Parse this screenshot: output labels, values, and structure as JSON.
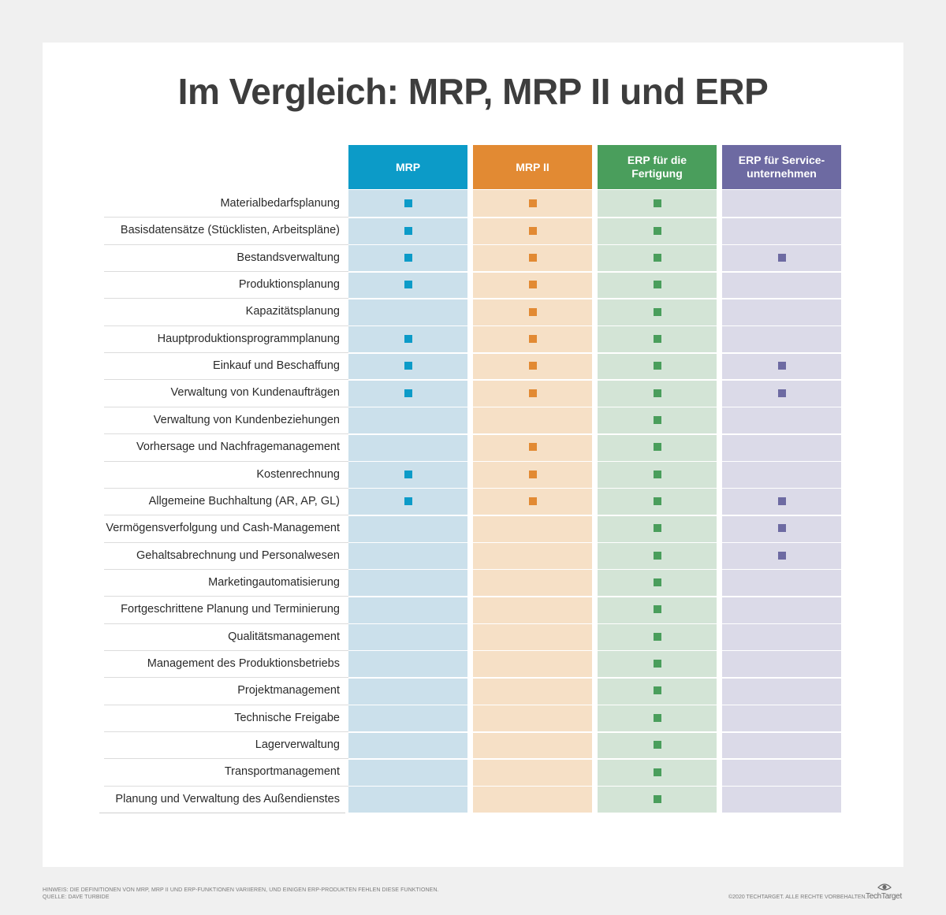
{
  "title": "Im Vergleich: MRP, MRP II und ERP",
  "columns": [
    {
      "label": "MRP",
      "header_color": "#0c9bc8",
      "body_color": "#cbe0eb",
      "mark_color": "#0c9bc8"
    },
    {
      "label": "MRP II",
      "header_color": "#e28a33",
      "body_color": "#f6e0c6",
      "mark_color": "#e28a33"
    },
    {
      "label": "ERP für die Fertigung",
      "header_color": "#4a9e5c",
      "body_color": "#d3e4d6",
      "mark_color": "#4a9e5c"
    },
    {
      "label": "ERP für Service-unternehmen",
      "header_color": "#6d6aa2",
      "body_color": "#dbdae8",
      "mark_color": "#6d6aa2"
    }
  ],
  "rows": [
    {
      "label": "Materialbedarfsplanung",
      "marks": [
        true,
        true,
        true,
        false
      ]
    },
    {
      "label": "Basisdatensätze (Stücklisten, Arbeitspläne)",
      "marks": [
        true,
        true,
        true,
        false
      ]
    },
    {
      "label": "Bestandsverwaltung",
      "marks": [
        true,
        true,
        true,
        true
      ]
    },
    {
      "label": "Produktionsplanung",
      "marks": [
        true,
        true,
        true,
        false
      ]
    },
    {
      "label": "Kapazitätsplanung",
      "marks": [
        false,
        true,
        true,
        false
      ]
    },
    {
      "label": "Hauptproduktionsprogrammplanung",
      "marks": [
        true,
        true,
        true,
        false
      ]
    },
    {
      "label": "Einkauf und Beschaffung",
      "marks": [
        true,
        true,
        true,
        true
      ]
    },
    {
      "label": "Verwaltung von Kundenaufträgen",
      "marks": [
        true,
        true,
        true,
        true
      ]
    },
    {
      "label": "Verwaltung von Kundenbeziehungen",
      "marks": [
        false,
        false,
        true,
        false
      ]
    },
    {
      "label": "Vorhersage und Nachfragemanagement",
      "marks": [
        false,
        true,
        true,
        false
      ]
    },
    {
      "label": "Kostenrechnung",
      "marks": [
        true,
        true,
        true,
        false
      ]
    },
    {
      "label": "Allgemeine Buchhaltung (AR, AP, GL)",
      "marks": [
        true,
        true,
        true,
        true
      ]
    },
    {
      "label": "Vermögensverfolgung und Cash-Management",
      "marks": [
        false,
        false,
        true,
        true
      ]
    },
    {
      "label": "Gehaltsabrechnung und Personalwesen",
      "marks": [
        false,
        false,
        true,
        true
      ]
    },
    {
      "label": "Marketingautomatisierung",
      "marks": [
        false,
        false,
        true,
        false
      ]
    },
    {
      "label": "Fortgeschrittene Planung und Terminierung",
      "marks": [
        false,
        false,
        true,
        false
      ]
    },
    {
      "label": "Qualitätsmanagement",
      "marks": [
        false,
        false,
        true,
        false
      ]
    },
    {
      "label": "Management des Produktionsbetriebs",
      "marks": [
        false,
        false,
        true,
        false
      ]
    },
    {
      "label": "Projektmanagement",
      "marks": [
        false,
        false,
        true,
        false
      ]
    },
    {
      "label": "Technische Freigabe",
      "marks": [
        false,
        false,
        true,
        false
      ]
    },
    {
      "label": "Lagerverwaltung",
      "marks": [
        false,
        false,
        true,
        false
      ]
    },
    {
      "label": "Transportmanagement",
      "marks": [
        false,
        false,
        true,
        false
      ]
    },
    {
      "label": "Planung und Verwaltung des Außendienstes",
      "marks": [
        false,
        false,
        true,
        false
      ]
    }
  ],
  "footer": {
    "note_line1": "HINWEIS: DIE DEFINITIONEN VON MRP, MRP II UND ERP-FUNKTIONEN VARIIEREN, UND EINIGEN ERP-PRODUKTEN FEHLEN DIESE FUNKTIONEN.",
    "note_line2": "QUELLE: DAVE TURBIDE",
    "copyright": "©2020 TECHTARGET. ALLE RECHTE VORBEHALTEN.",
    "logo": "TechTarget"
  }
}
